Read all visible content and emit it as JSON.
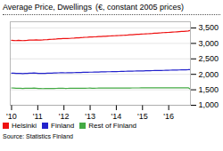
{
  "chart_data": {
    "type": "line",
    "title": "Average Price, Dwellings",
    "subtitle": "(€, constant 2005 prices)",
    "annotations": [
      "Source: Statistics Finland"
    ],
    "x": [
      2010,
      2010.085375,
      2010.17075,
      2010.256125,
      2010.3415,
      2010.426875,
      2010.51225,
      2010.597625,
      2010.683,
      2010.768375,
      2010.85375,
      2010.939125,
      2011.0245,
      2011.109875,
      2011.19525,
      2011.280625,
      2011.366,
      2011.451375,
      2011.53675,
      2011.622125,
      2011.7075,
      2011.792875,
      2011.87825,
      2011.963625,
      2012.049,
      2012.134375,
      2012.21975,
      2012.305125,
      2012.3905,
      2012.475875,
      2012.56125,
      2012.646625,
      2012.732,
      2012.817375,
      2012.90275,
      2012.988125,
      2013.0735,
      2013.158875,
      2013.24425,
      2013.329625,
      2013.415,
      2013.500375,
      2013.58575,
      2013.671125,
      2013.7565,
      2013.841875,
      2013.92725,
      2014.012625,
      2014.098,
      2014.183375,
      2014.26875,
      2014.354125,
      2014.4395,
      2014.524875,
      2014.61025,
      2014.695625,
      2014.781,
      2014.866375,
      2014.95175,
      2015.037125,
      2015.1225,
      2015.207875,
      2015.29325,
      2015.378625,
      2015.464,
      2015.549375,
      2015.63475,
      2015.720125,
      2015.8055,
      2015.890875,
      2015.97625,
      2016.061625,
      2016.147,
      2016.232375,
      2016.31775,
      2016.403125,
      2016.4885,
      2016.573875,
      2016.65925,
      2016.744625,
      2016.83
    ],
    "series": [
      {
        "name": "Helsinki",
        "color": "#ee1111",
        "values": [
          3100,
          3095,
          3090,
          3100,
          3095,
          3090,
          3095,
          3100,
          3110,
          3105,
          3110,
          3115,
          3110,
          3108,
          3112,
          3118,
          3122,
          3128,
          3132,
          3138,
          3142,
          3148,
          3152,
          3158,
          3155,
          3158,
          3162,
          3168,
          3172,
          3178,
          3182,
          3188,
          3192,
          3198,
          3202,
          3208,
          3210,
          3212,
          3215,
          3220,
          3225,
          3228,
          3232,
          3238,
          3240,
          3245,
          3248,
          3252,
          3255,
          3258,
          3262,
          3268,
          3272,
          3278,
          3282,
          3288,
          3292,
          3295,
          3300,
          3305,
          3308,
          3312,
          3318,
          3322,
          3328,
          3332,
          3338,
          3342,
          3348,
          3352,
          3355,
          3360,
          3365,
          3370,
          3375,
          3380,
          3385,
          3390,
          3395,
          3400,
          3420
        ]
      },
      {
        "name": "Finland",
        "color": "#2222cc",
        "values": [
          2040,
          2035,
          2030,
          2032,
          2028,
          2025,
          2028,
          2032,
          2035,
          2038,
          2042,
          2038,
          2032,
          2030,
          2030,
          2032,
          2035,
          2038,
          2040,
          2042,
          2045,
          2048,
          2050,
          2052,
          2048,
          2050,
          2052,
          2054,
          2056,
          2058,
          2060,
          2062,
          2064,
          2066,
          2068,
          2070,
          2070,
          2072,
          2074,
          2076,
          2078,
          2080,
          2082,
          2084,
          2085,
          2087,
          2088,
          2090,
          2092,
          2094,
          2096,
          2098,
          2100,
          2102,
          2104,
          2106,
          2108,
          2109,
          2110,
          2112,
          2114,
          2116,
          2118,
          2120,
          2121,
          2122,
          2124,
          2126,
          2128,
          2130,
          2132,
          2134,
          2136,
          2138,
          2140,
          2142,
          2144,
          2146,
          2148,
          2150,
          2155
        ]
      },
      {
        "name": "Rest of Finland",
        "color": "#44aa44",
        "values": [
          1560,
          1555,
          1550,
          1552,
          1548,
          1545,
          1548,
          1552,
          1550,
          1552,
          1555,
          1548,
          1542,
          1540,
          1538,
          1540,
          1542,
          1543,
          1544,
          1545,
          1546,
          1548,
          1549,
          1550,
          1545,
          1546,
          1547,
          1548,
          1549,
          1550,
          1550,
          1551,
          1552,
          1552,
          1553,
          1554,
          1552,
          1552,
          1553,
          1554,
          1554,
          1555,
          1555,
          1556,
          1556,
          1557,
          1557,
          1556,
          1557,
          1557,
          1558,
          1558,
          1559,
          1559,
          1560,
          1560,
          1560,
          1560,
          1561,
          1561,
          1561,
          1562,
          1562,
          1562,
          1562,
          1562,
          1563,
          1563,
          1563,
          1564,
          1564,
          1564,
          1564,
          1565,
          1565,
          1565,
          1565,
          1565,
          1566,
          1566,
          1520
        ]
      }
    ],
    "xlim": [
      2009.95,
      2016.83
    ],
    "xticks": [
      {
        "value": 2010,
        "label": "'10"
      },
      {
        "value": 2011,
        "label": "'11"
      },
      {
        "value": 2012,
        "label": "'12"
      },
      {
        "value": 2013,
        "label": "'13"
      },
      {
        "value": 2014,
        "label": "'14"
      },
      {
        "value": 2015,
        "label": "'15"
      },
      {
        "value": 2016,
        "label": "'16"
      }
    ],
    "ylim": [
      1000,
      3700
    ],
    "yticks": [
      {
        "value": 1000,
        "label": "1,000"
      },
      {
        "value": 1500,
        "label": "1,500"
      },
      {
        "value": 2000,
        "label": "2,000"
      },
      {
        "value": 2500,
        "label": "2,500"
      },
      {
        "value": 3000,
        "label": "3,000"
      },
      {
        "value": 3500,
        "label": "3,500"
      }
    ],
    "grid": true,
    "legend": "bottom"
  }
}
